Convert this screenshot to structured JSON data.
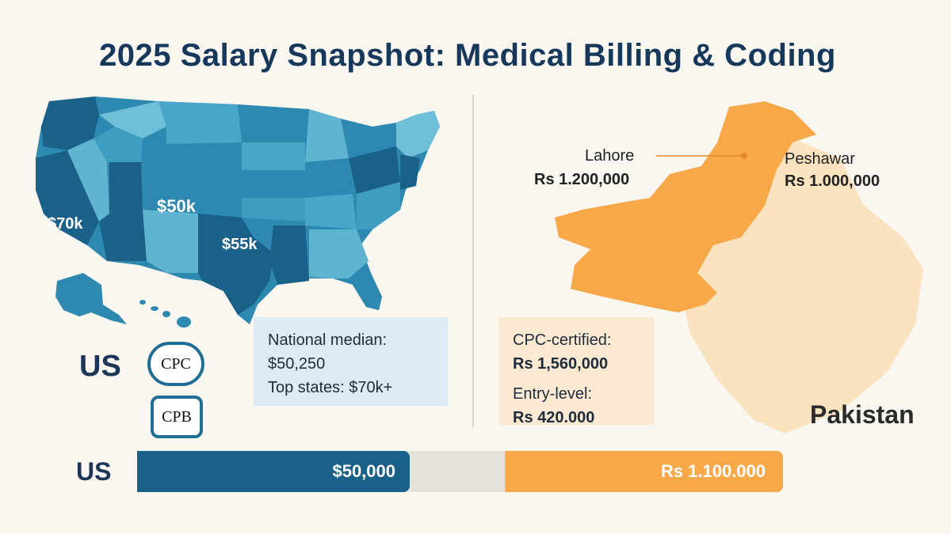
{
  "title": "2025 Salary Snapshot: Medical Billing & Coding",
  "us": {
    "country_label": "US",
    "map_labels": {
      "west": "$70k",
      "mountain": "$50k",
      "south": "$55k"
    },
    "badges": [
      "CPC",
      "CPB"
    ],
    "summary": {
      "median_label": "National median:",
      "median_value": "$50,250",
      "top_states": "Top states: $70k+"
    }
  },
  "pakistan": {
    "country_label": "Pakistan",
    "cities": [
      {
        "name": "Lahore",
        "value": "Rs 1.200,000"
      },
      {
        "name": "Peshawar",
        "value": "Rs 1.000,000"
      }
    ],
    "summary": {
      "cpc_label": "CPC-certified:",
      "cpc_value": "Rs 1,560,000",
      "entry_label": "Entry-level:",
      "entry_value": "Rs 420.000"
    }
  },
  "comparison": {
    "row_label": "US",
    "us_value": "$50,000",
    "pk_value": "Rs 1.100.000",
    "us_fill_fraction": 0.74,
    "pk_fill_fraction": 1.0
  },
  "colors": {
    "title": "#16385a",
    "us_dark": "#1a6189",
    "us_mid": "#2e89b0",
    "us_light": "#5fb4cf",
    "pk_orange": "#f7a94a",
    "pk_light": "#fbe3c0",
    "us_panel_bg": "#dcebf3",
    "pk_panel_bg": "#fce9d2"
  }
}
